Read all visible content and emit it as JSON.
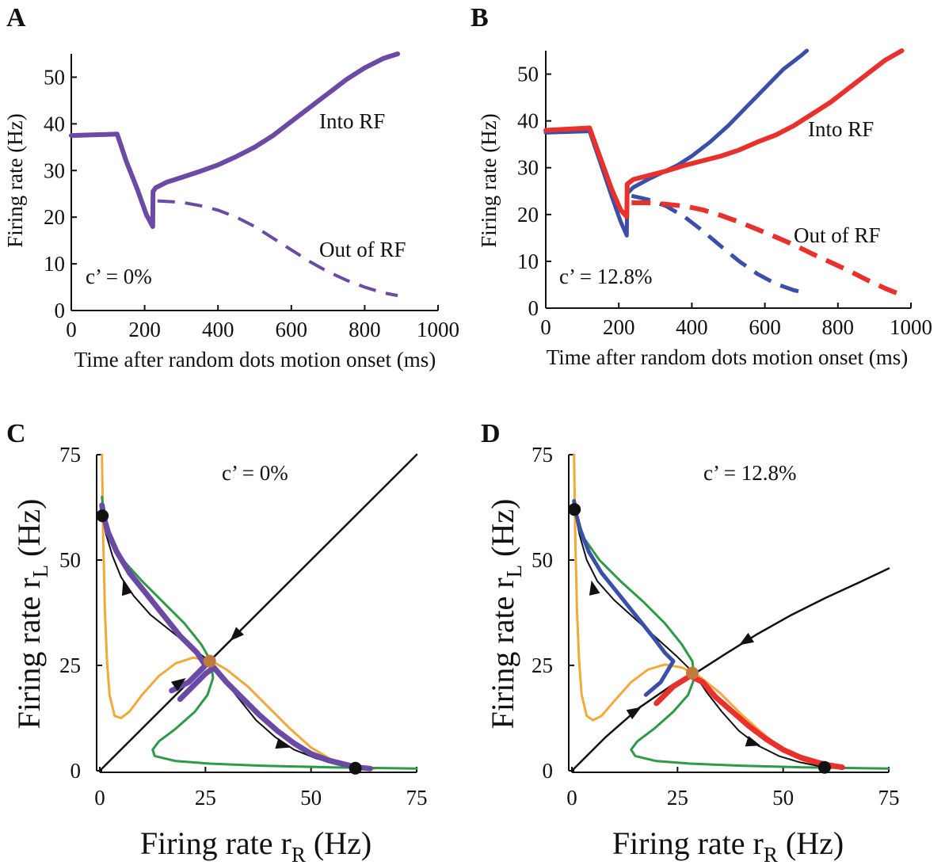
{
  "colors": {
    "purple": "#6a4aa5",
    "blue": "#3a4fa8",
    "red": "#e8312d",
    "orange": "#f2a93b",
    "green": "#2e9a47",
    "black": "#111111",
    "saddle": "#c07a3c"
  },
  "chart_data": [
    {
      "id": "A",
      "panel_label": "A",
      "type": "line",
      "xlabel": "Time after random dots motion onset (ms)",
      "ylabel": "Firing rate (Hz)",
      "xlim": [
        0,
        1000
      ],
      "ylim": [
        0,
        55
      ],
      "xticks": [
        0,
        200,
        400,
        600,
        800,
        1000
      ],
      "yticks": [
        0,
        10,
        20,
        30,
        40,
        50
      ],
      "annotations": [
        {
          "text": "Into RF",
          "at": [
            680,
            40
          ]
        },
        {
          "text": "Out of RF",
          "at": [
            680,
            12
          ]
        },
        {
          "text": "c’ = 0%",
          "at": [
            35,
            6
          ]
        }
      ],
      "series": [
        {
          "name": "Into RF",
          "color": "purple",
          "dashed": false,
          "width": 6,
          "x": [
            0,
            125,
            150,
            180,
            205,
            222,
            223,
            230,
            260,
            300,
            350,
            400,
            450,
            500,
            550,
            600,
            650,
            700,
            750,
            800,
            850,
            890
          ],
          "y": [
            37.5,
            37.8,
            32,
            26,
            20.5,
            18,
            25.5,
            26.3,
            27.5,
            28.5,
            29.8,
            31.2,
            33,
            35,
            37.5,
            40.5,
            43.5,
            46.5,
            49.5,
            52,
            54,
            55
          ]
        },
        {
          "name": "Out of RF",
          "color": "purple",
          "dashed": true,
          "width": 4,
          "x": [
            235,
            300,
            350,
            400,
            450,
            500,
            550,
            600,
            650,
            700,
            750,
            800,
            850,
            890
          ],
          "y": [
            23.5,
            23.2,
            22.5,
            21.5,
            20,
            18,
            15.5,
            13,
            10.5,
            8.3,
            6.5,
            5,
            3.8,
            3.2
          ]
        }
      ]
    },
    {
      "id": "B",
      "panel_label": "B",
      "type": "line",
      "xlabel": "Time after random dots motion onset (ms)",
      "ylabel": "Firing rate (Hz)",
      "xlim": [
        0,
        1000
      ],
      "ylim": [
        0,
        55
      ],
      "xticks": [
        0,
        200,
        400,
        600,
        800,
        1000
      ],
      "yticks": [
        0,
        10,
        20,
        30,
        40,
        50
      ],
      "annotations": [
        {
          "text": "Into RF",
          "at": [
            720,
            38
          ]
        },
        {
          "text": "Out of RF",
          "at": [
            680,
            14
          ]
        },
        {
          "text": "c’ = 12.8%",
          "at": [
            35,
            6
          ]
        }
      ],
      "series": [
        {
          "name": "Into RF (model)",
          "color": "blue",
          "dashed": false,
          "width": 5,
          "x": [
            0,
            120,
            150,
            180,
            205,
            222,
            223,
            240,
            280,
            320,
            360,
            400,
            450,
            500,
            550,
            600,
            650,
            700,
            715
          ],
          "y": [
            37.5,
            37.8,
            31,
            24,
            18.5,
            15.5,
            24.5,
            25.8,
            27.5,
            29,
            30.5,
            32.5,
            35.5,
            39,
            43,
            47,
            51,
            54,
            55
          ]
        },
        {
          "name": "Out of RF (model)",
          "color": "blue",
          "dashed": true,
          "width": 5,
          "x": [
            235,
            280,
            330,
            380,
            430,
            480,
            530,
            580,
            630,
            680,
            715
          ],
          "y": [
            24,
            23.2,
            21.8,
            19.5,
            16.5,
            13.2,
            10,
            7.3,
            5.2,
            3.8,
            3.2
          ]
        },
        {
          "name": "Into RF (spiking)",
          "color": "red",
          "dashed": false,
          "width": 6,
          "x": [
            0,
            120,
            150,
            180,
            205,
            222,
            223,
            240,
            280,
            330,
            380,
            430,
            480,
            530,
            580,
            630,
            680,
            730,
            780,
            830,
            880,
            930,
            975
          ],
          "y": [
            38,
            38.5,
            32,
            25.5,
            21,
            19.5,
            26.5,
            27.5,
            28.3,
            29.3,
            30.5,
            31.5,
            32.5,
            33.8,
            35.5,
            37,
            39,
            41.5,
            44,
            47,
            50,
            53,
            55
          ]
        },
        {
          "name": "Out of RF (spiking)",
          "color": "red",
          "dashed": true,
          "width": 6,
          "x": [
            235,
            280,
            330,
            380,
            430,
            480,
            530,
            580,
            630,
            680,
            730,
            780,
            830,
            880,
            930,
            975
          ],
          "y": [
            22.5,
            22.5,
            22.2,
            21.8,
            21,
            19.8,
            18.4,
            16.8,
            15.2,
            13.5,
            11.6,
            9.8,
            8,
            6,
            4.2,
            2.8
          ]
        }
      ]
    },
    {
      "id": "C",
      "panel_label": "C",
      "type": "line",
      "xlabel": "Firing rate r",
      "xlabel_sub": "R",
      "xlabel_unit": " (Hz)",
      "ylabel": "Firing rate r",
      "ylabel_sub": "L",
      "ylabel_unit": " (Hz)",
      "xlim": [
        0,
        75
      ],
      "ylim": [
        0,
        75
      ],
      "xticks": [
        0,
        25,
        50,
        75
      ],
      "yticks": [
        0,
        25,
        50,
        75
      ],
      "annotations": [
        {
          "text": "c’ = 0%",
          "at": [
            40,
            70
          ]
        }
      ],
      "series": [
        {
          "name": "nullcline-rL",
          "color": "orange",
          "width": 3,
          "x": [
            0.5,
            0.8,
            1.2,
            1.7,
            2.3,
            3.5,
            5,
            7,
            10,
            14,
            18,
            22,
            26,
            30,
            35,
            40,
            45,
            50,
            55,
            60,
            65
          ],
          "y": [
            75,
            55,
            38,
            26,
            18,
            13,
            12.5,
            14,
            18,
            22.5,
            25.5,
            26.8,
            26.3,
            24,
            20,
            15,
            10,
            5.5,
            2.5,
            1,
            0.5
          ]
        },
        {
          "name": "nullcline-rR",
          "color": "green",
          "width": 3,
          "x": [
            75,
            55,
            38,
            26,
            18,
            13,
            12.5,
            14,
            18,
            22.5,
            25.5,
            26.8,
            26.3,
            24,
            20,
            15,
            10,
            5.5,
            2.5,
            1,
            0.5
          ],
          "y": [
            0.5,
            0.8,
            1.2,
            1.7,
            2.3,
            3.5,
            5,
            7,
            10,
            14,
            18,
            22,
            26,
            30,
            35,
            40,
            45,
            50,
            55,
            60,
            65
          ]
        },
        {
          "name": "diagonal",
          "color": "black",
          "width": 2.5,
          "x": [
            0,
            75
          ],
          "y": [
            0,
            75
          ]
        },
        {
          "name": "trajectory-left",
          "color": "black",
          "width": 2,
          "x": [
            26,
            22,
            17,
            12,
            8,
            5,
            3,
            1.5,
            0.6
          ],
          "y": [
            26,
            29,
            33,
            37,
            41.5,
            46,
            51,
            56,
            60.5
          ]
        },
        {
          "name": "trajectory-right",
          "color": "black",
          "width": 2,
          "x": [
            26,
            29,
            33,
            37,
            41.5,
            46,
            51,
            56,
            60.5
          ],
          "y": [
            26,
            22,
            17,
            12,
            8,
            5,
            3,
            1.5,
            0.6
          ]
        },
        {
          "name": "simulation",
          "color": "purple",
          "width": 7,
          "x": [
            0.5,
            1,
            2,
            4,
            7,
            11,
            15,
            19,
            23,
            25,
            21,
            17
          ],
          "y": [
            63,
            60,
            56.5,
            52,
            47,
            42,
            37,
            32,
            28,
            25,
            21,
            19
          ]
        },
        {
          "name": "simulation",
          "color": "purple",
          "width": 7,
          "x": [
            19,
            22,
            25,
            27,
            30,
            34,
            38,
            42,
            46,
            50,
            54,
            58,
            61,
            64
          ],
          "y": [
            17,
            20,
            23,
            24.5,
            21,
            17,
            13,
            9.5,
            6.5,
            4,
            2.5,
            1.5,
            0.8,
            0.5
          ]
        }
      ],
      "points": [
        {
          "name": "stable-attractor",
          "x": 0.6,
          "y": 60.5,
          "color": "black"
        },
        {
          "name": "stable-attractor",
          "x": 60.5,
          "y": 0.6,
          "color": "black"
        },
        {
          "name": "saddle-point",
          "x": 26,
          "y": 26,
          "color": "saddle"
        }
      ],
      "arrows": [
        {
          "name": "arrow",
          "x": 32,
          "y": 32,
          "toward": [
            26,
            26
          ]
        },
        {
          "name": "arrow",
          "x": 19,
          "y": 21,
          "toward": [
            26,
            26
          ]
        },
        {
          "name": "arrow",
          "x": 6,
          "y": 43.5,
          "toward": [
            1,
            60
          ]
        },
        {
          "name": "arrow",
          "x": 43.5,
          "y": 6,
          "toward": [
            60,
            1
          ]
        }
      ]
    },
    {
      "id": "D",
      "panel_label": "D",
      "type": "line",
      "xlabel": "Firing rate r",
      "xlabel_sub": "R",
      "xlabel_unit": " (Hz)",
      "ylabel": "Firing rate r",
      "ylabel_sub": "L",
      "ylabel_unit": " (Hz)",
      "xlim": [
        0,
        75
      ],
      "ylim": [
        0,
        75
      ],
      "xticks": [
        0,
        25,
        50,
        75
      ],
      "yticks": [
        0,
        25,
        50,
        75
      ],
      "annotations": [
        {
          "text": "c’ = 12.8%",
          "at": [
            40,
            70
          ]
        }
      ],
      "series": [
        {
          "name": "nullcline-rL",
          "color": "orange",
          "width": 3,
          "x": [
            0.5,
            0.8,
            1.2,
            1.7,
            2.3,
            3.5,
            5,
            7,
            10,
            14,
            18,
            22,
            26,
            30,
            35,
            40,
            45,
            50,
            55,
            60,
            64
          ],
          "y": [
            75,
            55,
            38,
            26,
            18,
            13,
            12,
            13,
            16.5,
            21,
            24,
            25.2,
            24.5,
            22.5,
            18.5,
            13.5,
            9,
            5,
            2.3,
            1,
            0.5
          ]
        },
        {
          "name": "nullcline-rR",
          "color": "green",
          "width": 3,
          "x": [
            75,
            55,
            40,
            28,
            20,
            15,
            14,
            15.5,
            19.5,
            24,
            27.5,
            29,
            28.5,
            26,
            22,
            17,
            11.5,
            6.5,
            3,
            1.2,
            0.6
          ],
          "y": [
            0.5,
            0.8,
            1.2,
            1.7,
            2.3,
            3.5,
            5,
            7,
            10,
            14,
            18,
            22,
            26,
            30,
            35,
            40,
            45,
            50,
            55,
            60,
            64
          ]
        },
        {
          "name": "separatrix",
          "color": "black",
          "width": 2.5,
          "x": [
            0,
            8,
            16,
            24,
            29,
            36,
            44,
            52,
            60,
            68,
            75
          ],
          "y": [
            0,
            8,
            15,
            20.5,
            23,
            27.5,
            32.5,
            37,
            41,
            44.7,
            48
          ]
        },
        {
          "name": "trajectory-left",
          "color": "black",
          "width": 2,
          "x": [
            29,
            25,
            20,
            15,
            10,
            6,
            3.5,
            1.8,
            0.6
          ],
          "y": [
            23,
            27,
            31.5,
            36,
            40.5,
            45,
            50,
            56,
            62
          ]
        },
        {
          "name": "trajectory-right",
          "color": "black",
          "width": 2,
          "x": [
            29,
            32,
            35.5,
            39.5,
            44,
            49,
            54,
            58,
            60
          ],
          "y": [
            23,
            18.5,
            14,
            9.5,
            6,
            3.5,
            2,
            1.2,
            0.8
          ]
        },
        {
          "name": "simulation",
          "color": "blue",
          "width": 5,
          "x": [
            0.5,
            1,
            2,
            4,
            7,
            11,
            15,
            19,
            22,
            24,
            21,
            17.5
          ],
          "y": [
            64,
            61,
            57,
            52,
            47,
            42,
            37,
            32,
            28,
            26,
            21,
            18
          ]
        },
        {
          "name": "simulation",
          "color": "red",
          "width": 7,
          "x": [
            20,
            24,
            28,
            31,
            34,
            38,
            42,
            46,
            50,
            54,
            58,
            61,
            64
          ],
          "y": [
            16,
            20,
            22.5,
            21,
            17.5,
            14,
            10.5,
            7.5,
            5,
            3.2,
            2,
            1.3,
            0.8
          ]
        }
      ],
      "points": [
        {
          "name": "stable-attractor",
          "x": 0.6,
          "y": 62,
          "color": "black"
        },
        {
          "name": "stable-attractor",
          "x": 59.8,
          "y": 0.8,
          "color": "black"
        },
        {
          "name": "saddle-point",
          "x": 28.5,
          "y": 23.2,
          "color": "saddle"
        }
      ],
      "arrows": [
        {
          "name": "arrow",
          "x": 41,
          "y": 30.7,
          "toward": [
            29,
            23
          ]
        },
        {
          "name": "arrow",
          "x": 15,
          "y": 14.2,
          "toward": [
            29,
            23
          ]
        },
        {
          "name": "arrow",
          "x": 5,
          "y": 43.5,
          "toward": [
            1,
            61
          ]
        },
        {
          "name": "arrow",
          "x": 43,
          "y": 6.5,
          "toward": [
            60,
            1
          ]
        }
      ]
    }
  ]
}
